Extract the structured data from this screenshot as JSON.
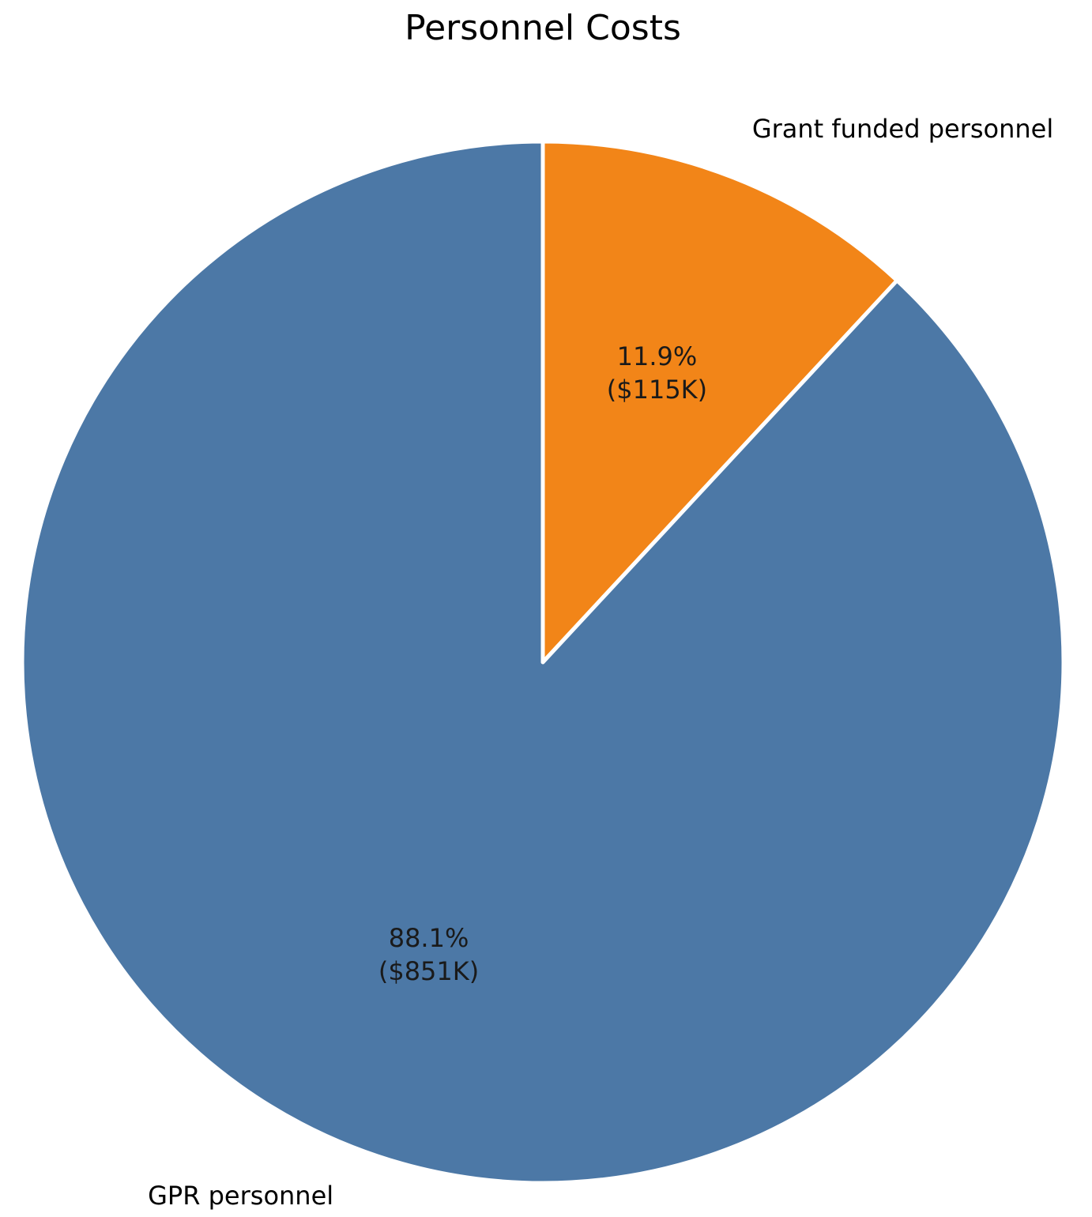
{
  "chart_data": {
    "type": "pie",
    "title": "Personnel Costs",
    "start_angle": 90,
    "direction": "clockwise",
    "slices": [
      {
        "label": "Grant funded personnel",
        "value": 115,
        "percent_label": "11.9%",
        "amount_label": "($115K)",
        "color": "#F28518"
      },
      {
        "label": "GPR personnel",
        "value": 851,
        "percent_label": "88.1%",
        "amount_label": "($851K)",
        "color": "#4C78A6"
      }
    ],
    "edge_color": "#FFFFFF",
    "legend": "none"
  }
}
